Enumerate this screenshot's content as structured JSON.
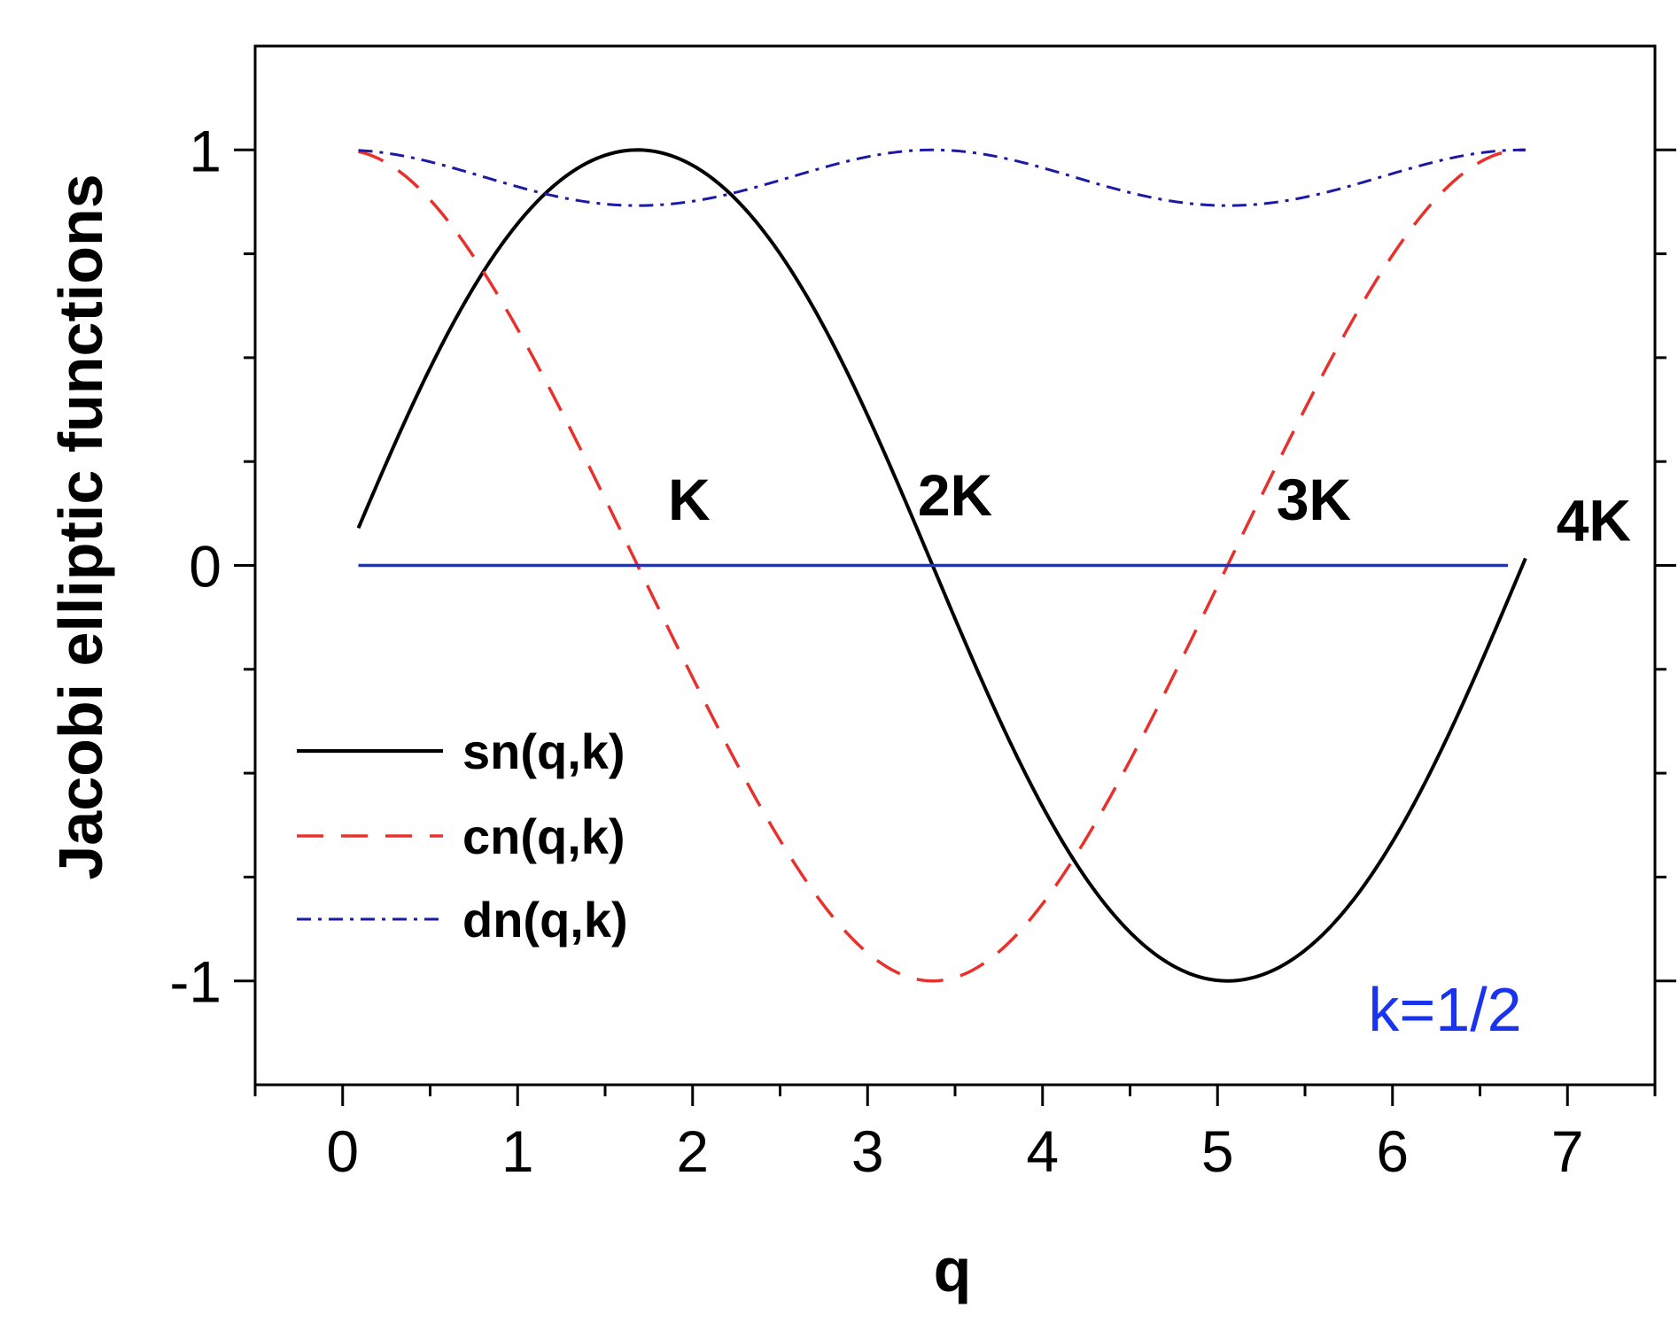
{
  "chart_data": {
    "type": "line",
    "title": "",
    "xlabel": "q",
    "ylabel": "Jacobi elliptic functions",
    "xlim": [
      -0.5,
      7.5
    ],
    "ylim": [
      -1.25,
      1.25
    ],
    "x_ticks": [
      "0",
      "1",
      "2",
      "3",
      "4",
      "5",
      "6",
      "7"
    ],
    "x_tick_values": [
      0,
      1,
      2,
      3,
      4,
      5,
      6,
      7
    ],
    "y_ticks": [
      "-1",
      "0",
      "1"
    ],
    "y_tick_values": [
      -1,
      0,
      1
    ],
    "grid": false,
    "legend_position": "lower-left",
    "parameter_k": 0.5,
    "x_range": [
      0.09,
      6.76
    ],
    "quarter_period_K": 1.6858,
    "series": [
      {
        "name": "sn(q,k)",
        "function": "sn",
        "color": "#000000",
        "dash": "solid"
      },
      {
        "name": "cn(q,k)",
        "function": "cn",
        "color": "#e8312c",
        "dash": "dashed"
      },
      {
        "name": "dn(q,k)",
        "function": "dn",
        "color": "#1a1aa6",
        "dash": "dash-dot"
      }
    ],
    "zero_line": {
      "from": 0.09,
      "to": 6.66,
      "value": 0,
      "color": "#1a33cc"
    },
    "annotations": [
      {
        "text": "K",
        "x": 1.98,
        "y": 0.11
      },
      {
        "text": "2K",
        "x": 3.5,
        "y": 0.12
      },
      {
        "text": "3K",
        "x": 5.55,
        "y": 0.11
      },
      {
        "text": "4K",
        "x": 7.15,
        "y": 0.06
      },
      {
        "text": "k=1/2",
        "x": 6.3,
        "y": -1.12,
        "color": "#1a33ee"
      }
    ]
  }
}
